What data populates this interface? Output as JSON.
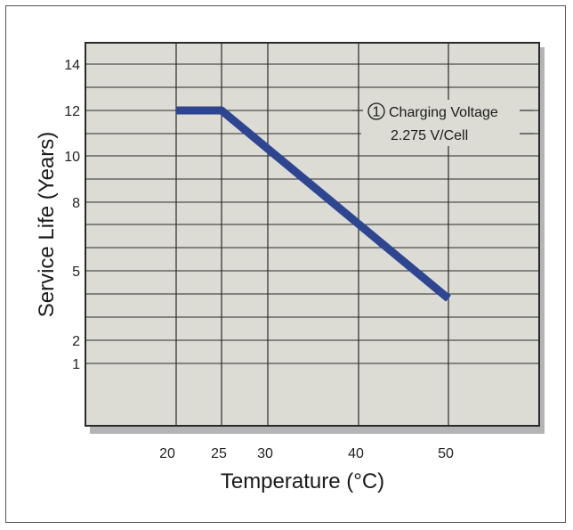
{
  "chart_data": {
    "type": "line",
    "xlabel": "Temperature (°C)",
    "ylabel": "Service Life (Years)",
    "x_ticks": [
      "20",
      "25",
      "30",
      "40",
      "50"
    ],
    "y_ticks": [
      "1",
      "2",
      "5",
      "8",
      "10",
      "12",
      "14"
    ],
    "series": [
      {
        "x": [
          20,
          25,
          50
        ],
        "y": [
          12,
          12,
          3.8
        ]
      }
    ],
    "grid": true,
    "annotation": {
      "marker": "1",
      "line1": "Charging Voltage",
      "line2": "2.275 V/Cell"
    },
    "colors": {
      "line": "#2e4691",
      "plot_bg": "#dcdcd4",
      "shadow": "#b4b4b4",
      "grid": "#2a2a2a"
    }
  }
}
